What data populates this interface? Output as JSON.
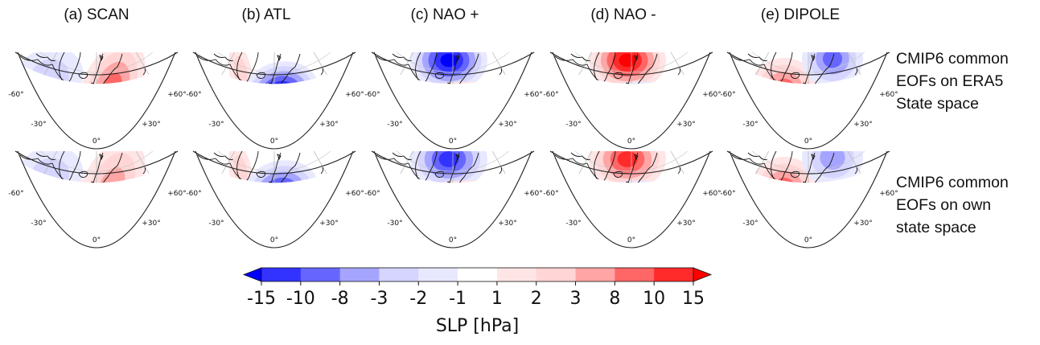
{
  "chart_data": {
    "type": "heatmap",
    "title": "",
    "description": "Polar stereographic North Atlantic SLP anomaly patterns (EOFs) for 5 regimes x 2 state spaces",
    "columns": [
      {
        "id": "a",
        "title": "(a)  SCAN"
      },
      {
        "id": "b",
        "title": "(b) ATL"
      },
      {
        "id": "c",
        "title": "(c) NAO +"
      },
      {
        "id": "d",
        "title": "(d) NAO -"
      },
      {
        "id": "e",
        "title": "(e) DIPOLE"
      }
    ],
    "rows": [
      {
        "id": "era5",
        "label_lines": [
          "CMIP6 common",
          "EOFs on ERA5",
          "State space"
        ]
      },
      {
        "id": "own",
        "label_lines": [
          "CMIP6 common",
          "EOFs on own",
          "state space"
        ]
      }
    ],
    "map_longitude_labels": [
      "-60°",
      "-30°",
      "0°",
      "+30°",
      "+60°"
    ],
    "patterns": {
      "a": [
        {
          "region": "Greenland/Labrador",
          "sign": "negative",
          "peak_hPa": -3
        },
        {
          "region": "Scandinavia/North Sea",
          "sign": "positive",
          "peak_hPa": 8
        }
      ],
      "b": [
        {
          "region": "Labrador Sea",
          "sign": "positive",
          "peak_hPa": 2
        },
        {
          "region": "British Isles/North Sea",
          "sign": "negative",
          "peak_hPa": -15
        }
      ],
      "c": [
        {
          "region": "Greenland/Iceland",
          "sign": "negative",
          "peak_hPa": -15
        },
        {
          "region": "Mid-latitude Atlantic band",
          "sign": "positive",
          "peak_hPa": 8
        }
      ],
      "d": [
        {
          "region": "Greenland/Iceland",
          "sign": "positive",
          "peak_hPa": 15
        },
        {
          "region": "Mid-latitude Atlantic band",
          "sign": "negative",
          "peak_hPa": -8
        }
      ],
      "e": [
        {
          "region": "Central North Atlantic west of Ireland",
          "sign": "positive",
          "peak_hPa": 10
        },
        {
          "region": "Scandinavia/Barents",
          "sign": "negative",
          "peak_hPa": -8
        }
      ]
    },
    "colorbar": {
      "label": "SLP [hPa]",
      "ticks": [
        "-15",
        "-10",
        "-8",
        "-3",
        "-2",
        "-1",
        "1",
        "2",
        "3",
        "8",
        "10",
        "15"
      ],
      "levels": [
        -15,
        -10,
        -8,
        -3,
        -2,
        -1,
        1,
        2,
        3,
        8,
        10,
        15
      ],
      "colors": [
        "#3333ff",
        "#6666ff",
        "#a5a5ff",
        "#d5d5ff",
        "#e8e8ff",
        "#ffffff",
        "#ffe5e5",
        "#ffd5d5",
        "#ffa5a5",
        "#ff6666",
        "#ff2a2a"
      ],
      "extend_low_color": "#0000ff",
      "extend_high_color": "#ff0000",
      "extend": "both",
      "orientation": "horizontal",
      "placement": "bottom-center"
    }
  }
}
